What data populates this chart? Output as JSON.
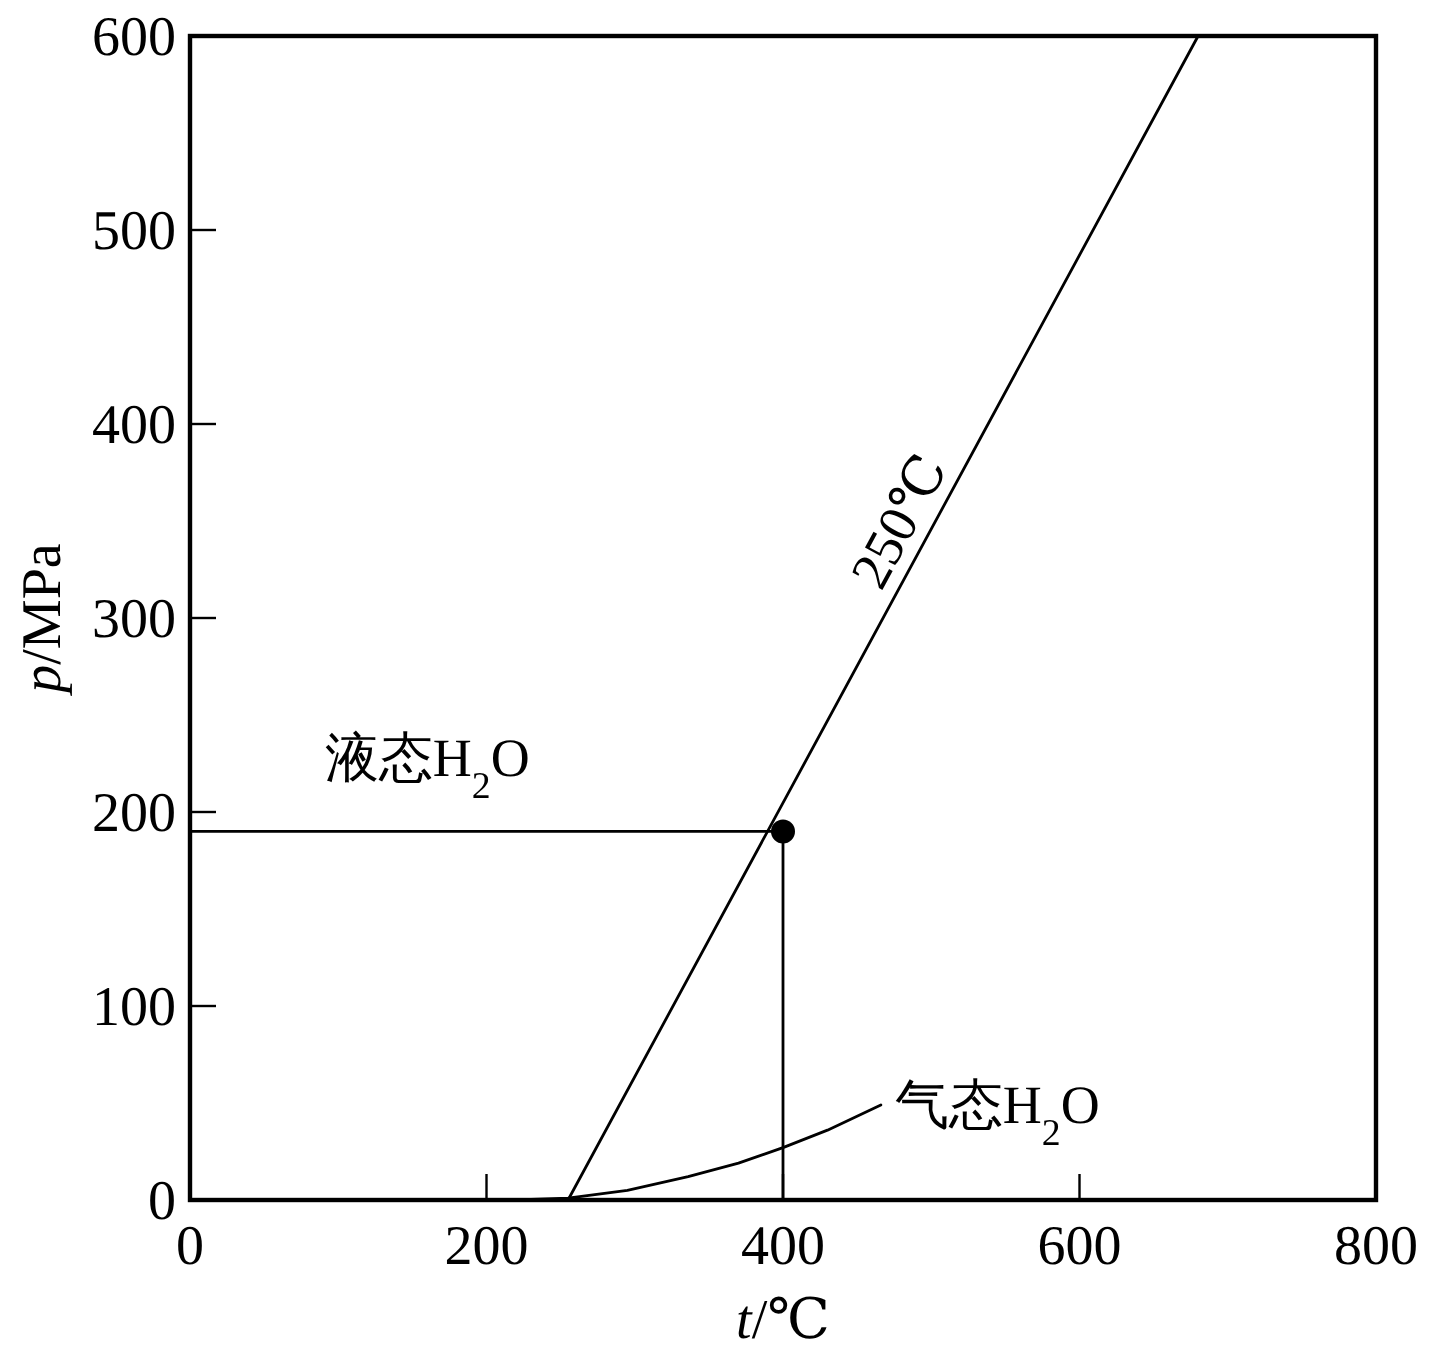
{
  "chart_data": {
    "type": "line",
    "xlabel": "*t*/℃",
    "ylabel": "*p*/MPa",
    "xlim": [
      0,
      800
    ],
    "ylim": [
      0,
      600
    ],
    "xticks": [
      0,
      200,
      400,
      600,
      800
    ],
    "yticks": [
      0,
      100,
      200,
      300,
      400,
      500,
      600
    ],
    "series": [
      {
        "type": "line",
        "color": "#000000",
        "x": [
          0,
          400,
          400
        ],
        "values": [
          190,
          190,
          0
        ]
      },
      {
        "name": "250℃",
        "color": "#000000",
        "x": [
          255,
          680
        ],
        "values": [
          0,
          600
        ]
      },
      {
        "name": "气态H$_{2}$O",
        "color": "#000000",
        "x": [
          180,
          220,
          255,
          295,
          336,
          370,
          400,
          430,
          466
        ],
        "values": [
          0,
          0,
          1,
          5,
          12,
          19,
          27,
          36,
          49
        ]
      },
      {
        "type": "scatter",
        "marker": "circle",
        "color": "#000000",
        "x": [
          400
        ],
        "values": [
          190
        ]
      }
    ],
    "annotations": [
      "液态H$_{2}$O"
    ]
  }
}
